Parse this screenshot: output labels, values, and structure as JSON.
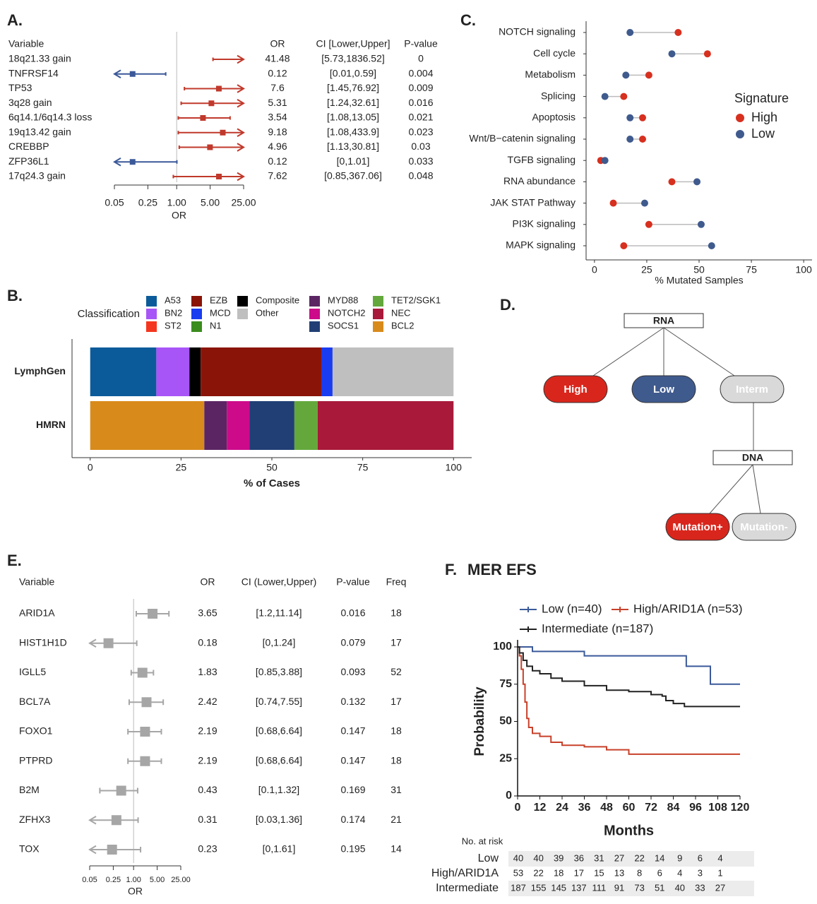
{
  "chart_data": [
    {
      "type": "forest",
      "panel": "A.",
      "columns": [
        "Variable",
        "OR",
        "CI [Lower,Upper]",
        "P-value"
      ],
      "categories": [
        "18q21.33 gain",
        "TNFRSF14",
        "TP53",
        "3q28 gain",
        "6q14.1/6q14.3 loss",
        "19q13.42 gain",
        "CREBBP",
        "ZFP36L1",
        "17q24.3 gain"
      ],
      "values": [
        41.48,
        0.12,
        7.6,
        5.31,
        3.54,
        9.18,
        4.96,
        0.12,
        7.62
      ],
      "ci_labels": [
        "[5.73,1836.52]",
        "[0.01,0.59]",
        "[1.45,76.92]",
        "[1.24,32.61]",
        "[1.08,13.05]",
        "[1.08,433.9]",
        "[1.13,30.81]",
        "[0,1.01]",
        "[0.85,367.06]"
      ],
      "lower": [
        5.73,
        0.01,
        1.45,
        1.24,
        1.08,
        1.08,
        1.13,
        0,
        0.85
      ],
      "upper": [
        1836.52,
        0.59,
        76.92,
        32.61,
        13.05,
        433.9,
        30.81,
        1.01,
        367.06
      ],
      "p_values": [
        0,
        0.004,
        0.009,
        0.016,
        0.021,
        0.023,
        0.03,
        0.033,
        0.048
      ],
      "colors": [
        "#c0392b",
        "#3b5998",
        "#c0392b",
        "#c0392b",
        "#c0392b",
        "#c0392b",
        "#c0392b",
        "#3b5998",
        "#c0392b"
      ],
      "xlabel": "OR",
      "log_x": true,
      "reference_line": 1,
      "xlim": [
        0.05,
        25
      ],
      "xticks": [
        0.05,
        0.25,
        {
          "value": 1,
          "label": "1.00"
        },
        {
          "value": 5,
          "label": "5.00"
        },
        {
          "value": 25,
          "label": "25.00"
        }
      ]
    },
    {
      "type": "dumbbell",
      "panel": "C.",
      "categories": [
        "NOTCH signaling",
        "Cell cycle",
        "Metabolism",
        "Splicing",
        "Apoptosis",
        "Wnt/B−catenin signaling",
        "TGFB signaling",
        "RNA abundance",
        "JAK STAT Pathway",
        "PI3K signaling",
        "MAPK signaling"
      ],
      "series": [
        {
          "name": "High",
          "color": "#d7301f",
          "values": [
            40,
            54,
            26,
            14,
            23,
            23,
            3,
            37,
            9,
            26,
            14
          ]
        },
        {
          "name": "Low",
          "color": "#3f5a8d",
          "values": [
            17,
            37,
            15,
            5,
            17,
            17,
            5,
            49,
            24,
            51,
            56
          ]
        }
      ],
      "legend_title": "Signature",
      "legend": "right",
      "xlabel": "% Mutated Samples",
      "xlim": [
        -4,
        104
      ],
      "xticks": [
        0,
        25,
        50,
        75,
        100
      ]
    },
    {
      "type": "stacked_bar",
      "panel": "B.",
      "orientation": "horizontal",
      "categories": [
        "LymphGen",
        "HMRN"
      ],
      "series": [
        {
          "name": "A53",
          "color": "#0b5b9a",
          "values": [
            18.2,
            null
          ]
        },
        {
          "name": "BN2",
          "color": "#a855f7",
          "values": [
            9.1,
            null
          ]
        },
        {
          "name": "Composite",
          "color": "#000000",
          "values": [
            3.1,
            null
          ]
        },
        {
          "name": "EZB",
          "color": "#8b1408",
          "values": [
            33.2,
            null
          ]
        },
        {
          "name": "MCD",
          "color": "#1a3cf0",
          "values": [
            3.1,
            null
          ]
        },
        {
          "name": "Other",
          "color": "#bfbfbf",
          "values": [
            33.3,
            null
          ]
        },
        {
          "name": "ST2",
          "color": "#f4361e",
          "values": [
            null,
            null
          ]
        },
        {
          "name": "N1",
          "color": "#3a8c1d",
          "values": [
            null,
            null
          ]
        },
        {
          "name": "BCL2",
          "color": "#d88b1b",
          "values": [
            null,
            31.4
          ]
        },
        {
          "name": "MYD88",
          "color": "#5b2563",
          "values": [
            null,
            6.2
          ]
        },
        {
          "name": "NOTCH2",
          "color": "#cc0a8a",
          "values": [
            null,
            6.2
          ]
        },
        {
          "name": "SOCS1",
          "color": "#213f75",
          "values": [
            null,
            12.4
          ]
        },
        {
          "name": "TET2/SGK1",
          "color": "#64a83c",
          "values": [
            null,
            6.4
          ]
        },
        {
          "name": "NEC",
          "color": "#a8193a",
          "values": [
            null,
            37.4
          ]
        }
      ],
      "legend_title": "Classification",
      "legend": "top",
      "xlabel": "% of Cases",
      "xlim": [
        -5,
        105
      ],
      "xticks": [
        0,
        25,
        50,
        75,
        100
      ]
    },
    {
      "type": "forest",
      "panel": "E.",
      "columns": [
        "Variable",
        "OR",
        "CI (Lower,Upper)",
        "P-value",
        "Freq"
      ],
      "categories": [
        "ARID1A",
        "HIST1H1D",
        "IGLL5",
        "BCL7A",
        "FOXO1",
        "PTPRD",
        "B2M",
        "ZFHX3",
        "TOX"
      ],
      "values": [
        3.65,
        0.18,
        1.83,
        2.42,
        2.19,
        2.19,
        0.43,
        0.31,
        0.23
      ],
      "ci_labels": [
        "[1.2,11.14]",
        "[0,1.24]",
        "[0.85,3.88]",
        "[0.74,7.55]",
        "[0.68,6.64]",
        "[0.68,6.64]",
        "[0.1,1.32]",
        "[0.03,1.36]",
        "[0,1.61]"
      ],
      "lower": [
        1.2,
        0,
        0.85,
        0.74,
        0.68,
        0.68,
        0.1,
        0.03,
        0
      ],
      "upper": [
        11.14,
        1.24,
        3.88,
        7.55,
        6.64,
        6.64,
        1.32,
        1.36,
        1.61
      ],
      "p_values": [
        0.016,
        0.079,
        0.093,
        0.132,
        0.147,
        0.147,
        0.169,
        0.174,
        0.195
      ],
      "freq": [
        18,
        17,
        52,
        17,
        18,
        18,
        31,
        21,
        14
      ],
      "color": "#a6a6a6",
      "xlabel": "OR",
      "log_x": true,
      "reference_line": 1,
      "xlim": [
        0.05,
        25
      ],
      "xticks": [
        0.05,
        0.25,
        {
          "value": 1,
          "label": "1.00"
        },
        {
          "value": 5,
          "label": "5.00"
        },
        {
          "value": 25,
          "label": "25.00"
        }
      ]
    },
    {
      "type": "km",
      "panel": "F.",
      "title": "MER EFS",
      "series": [
        {
          "name": "Low (n=40)",
          "color": "#3b5a9a",
          "x": [
            0,
            8,
            36,
            91,
            104,
            120
          ],
          "values": [
            100,
            97,
            94,
            87,
            75,
            75
          ]
        },
        {
          "name": "High/ARID1A (n=53)",
          "color": "#c8412a",
          "x": [
            0,
            1,
            2,
            3,
            4,
            5,
            6,
            8,
            12,
            18,
            24,
            36,
            48,
            60,
            120
          ],
          "values": [
            100,
            94,
            85,
            75,
            63,
            52,
            46,
            42,
            40,
            36,
            34,
            33,
            31,
            28,
            28
          ]
        },
        {
          "name": "Intermediate (n=187)",
          "color": "#222222",
          "x": [
            0,
            1,
            3,
            5,
            8,
            12,
            18,
            24,
            36,
            48,
            60,
            72,
            78,
            80,
            84,
            90,
            120
          ],
          "values": [
            100,
            96,
            91,
            87,
            84,
            82,
            79,
            77,
            74,
            71,
            70,
            68,
            67,
            64,
            62,
            60,
            60
          ]
        }
      ],
      "xlabel": "Months",
      "ylabel": "Probability",
      "xlim": [
        0,
        120
      ],
      "xticks": [
        0,
        12,
        24,
        36,
        48,
        60,
        72,
        84,
        96,
        108,
        120
      ],
      "ylim": [
        0,
        100
      ],
      "yticks": [
        0,
        25,
        50,
        75,
        100
      ],
      "risk_table": {
        "title": "No. at risk",
        "rows": [
          {
            "label": "Low",
            "values": [
              40,
              40,
              39,
              36,
              31,
              27,
              22,
              14,
              9,
              6,
              4
            ]
          },
          {
            "label": "High/ARID1A",
            "values": [
              53,
              22,
              18,
              17,
              15,
              13,
              8,
              6,
              4,
              3,
              1
            ]
          },
          {
            "label": "Intermediate",
            "values": [
              187,
              155,
              145,
              137,
              111,
              91,
              73,
              51,
              40,
              33,
              27
            ]
          }
        ]
      }
    }
  ],
  "diagram": {
    "panel": "D.",
    "nodes": [
      {
        "label": "RNA"
      },
      {
        "label": "High"
      },
      {
        "label": "Low"
      },
      {
        "label": "Interm"
      },
      {
        "label": "DNA"
      },
      {
        "label": "Mutation+"
      },
      {
        "label": "Mutation-"
      }
    ]
  }
}
